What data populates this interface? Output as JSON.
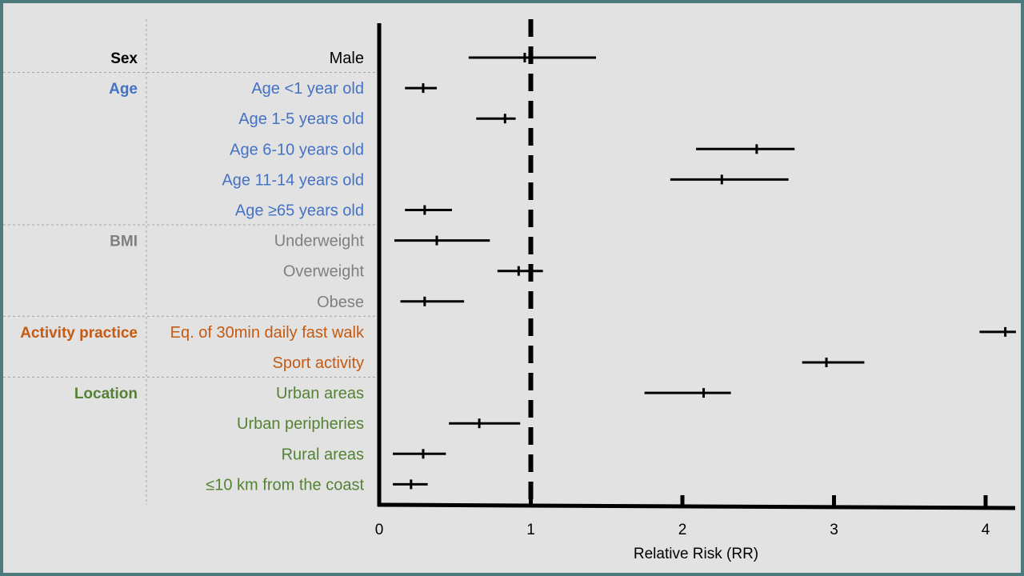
{
  "chart_data": {
    "type": "forest",
    "xlabel": "Relative Risk (RR)",
    "xlim": [
      0,
      4.2
    ],
    "xticks": [
      0,
      1,
      2,
      3,
      4
    ],
    "reference_line": 1,
    "groups": [
      {
        "name": "Sex",
        "color": "#000000",
        "rows": [
          {
            "label": "Male",
            "rr": 0.96,
            "lo": 0.59,
            "hi": 1.43
          }
        ]
      },
      {
        "name": "Age",
        "color": "#4472c4",
        "rows": [
          {
            "label": "Age <1 year old",
            "rr": 0.29,
            "lo": 0.17,
            "hi": 0.38
          },
          {
            "label": "Age 1-5 years old",
            "rr": 0.83,
            "lo": 0.64,
            "hi": 0.9
          },
          {
            "label": "Age 6-10 years old",
            "rr": 2.49,
            "lo": 2.09,
            "hi": 2.74
          },
          {
            "label": "Age 11-14 years old",
            "rr": 2.26,
            "lo": 1.92,
            "hi": 2.7
          },
          {
            "label": "Age ≥65 years old",
            "rr": 0.3,
            "lo": 0.17,
            "hi": 0.48
          }
        ]
      },
      {
        "name": "BMI",
        "color": "#7f7f7f",
        "rows": [
          {
            "label": "Underweight",
            "rr": 0.38,
            "lo": 0.1,
            "hi": 0.73
          },
          {
            "label": "Overweight",
            "rr": 0.92,
            "lo": 0.78,
            "hi": 1.08
          },
          {
            "label": "Obese",
            "rr": 0.3,
            "lo": 0.14,
            "hi": 0.56
          }
        ]
      },
      {
        "name": "Activity practice",
        "color": "#c55a11",
        "rows": [
          {
            "label": "Eq. of 30min daily fast walk",
            "rr": 4.13,
            "lo": 3.96,
            "hi": 4.2
          },
          {
            "label": "Sport activity",
            "rr": 2.95,
            "lo": 2.79,
            "hi": 3.2
          }
        ]
      },
      {
        "name": "Location",
        "color": "#548235",
        "rows": [
          {
            "label": "Urban areas",
            "rr": 2.14,
            "lo": 1.75,
            "hi": 2.32
          },
          {
            "label": "Urban peripheries",
            "rr": 0.66,
            "lo": 0.46,
            "hi": 0.93
          },
          {
            "label": "Rural areas",
            "rr": 0.29,
            "lo": 0.09,
            "hi": 0.44
          },
          {
            "label": "≤10 km from the coast",
            "rr": 0.21,
            "lo": 0.09,
            "hi": 0.32
          }
        ]
      }
    ]
  }
}
